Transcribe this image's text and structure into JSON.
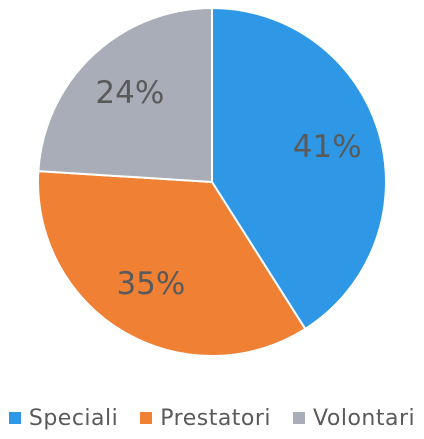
{
  "chart_data": {
    "type": "pie",
    "start_angle": "12 o'clock",
    "direction": "clockwise",
    "legend_position": "bottom",
    "categories": [
      "Speciali",
      "Prestatori",
      "Volontari"
    ],
    "values": [
      41,
      35,
      24
    ],
    "labels": [
      "41%",
      "35%",
      "24%"
    ],
    "colors": [
      "#2e98e6",
      "#ef8034",
      "#a9adb8"
    ],
    "slice_border_color": "#ffffff"
  }
}
